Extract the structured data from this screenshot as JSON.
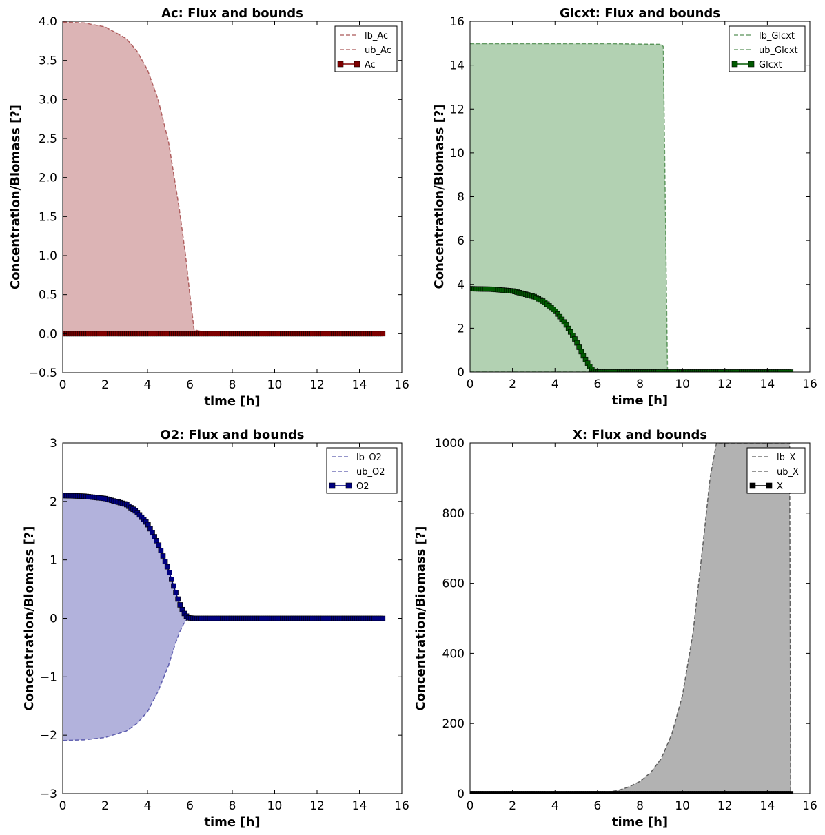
{
  "chart_data": [
    {
      "type": "line",
      "title": "Ac: Flux and bounds",
      "xlabel": "time [h]",
      "ylabel": "Concentration/Biomass [?]",
      "xlim": [
        0,
        16
      ],
      "ylim": [
        -0.5,
        4.0
      ],
      "xticks": [
        "0",
        "2",
        "4",
        "6",
        "8",
        "10",
        "12",
        "14",
        "16"
      ],
      "yticks": [
        "−0.5",
        "0.0",
        "0.5",
        "1.0",
        "1.5",
        "2.0",
        "2.5",
        "3.0",
        "3.5",
        "4.0"
      ],
      "ytick_values": [
        -0.5,
        0,
        0.5,
        1,
        1.5,
        2,
        2.5,
        3,
        3.5,
        4
      ],
      "grid": false,
      "legend_position": "top-right",
      "color": "#800000",
      "fill_color": "#dcb4b5",
      "x": [
        0,
        1,
        2,
        3,
        3.5,
        4,
        4.5,
        5,
        5.5,
        5.8,
        6.0,
        6.2,
        7,
        8,
        10,
        12,
        14,
        15.1
      ],
      "series": [
        {
          "name": "lb_Ac",
          "style": "dashed",
          "values": [
            0,
            0,
            0,
            0,
            0,
            0,
            0,
            0,
            0,
            0,
            0,
            0,
            0,
            0,
            0,
            0,
            0,
            0
          ]
        },
        {
          "name": "ub_Ac",
          "style": "dashed",
          "values": [
            3.99,
            3.98,
            3.93,
            3.78,
            3.62,
            3.38,
            3.0,
            2.45,
            1.6,
            1.0,
            0.5,
            0.05,
            0,
            0,
            0,
            0,
            0,
            0
          ]
        },
        {
          "name": "Ac",
          "style": "line-square",
          "values": [
            0,
            0,
            0,
            0,
            0,
            0,
            0,
            0,
            0,
            0,
            0,
            0,
            0,
            0,
            0,
            0,
            0,
            0
          ]
        }
      ]
    },
    {
      "type": "line",
      "title": "Glcxt: Flux and bounds",
      "xlabel": "time [h]",
      "ylabel": "Concentration/Biomass [?]",
      "xlim": [
        0,
        16
      ],
      "ylim": [
        0,
        16
      ],
      "xticks": [
        "0",
        "2",
        "4",
        "6",
        "8",
        "10",
        "12",
        "14",
        "16"
      ],
      "yticks": [
        "0",
        "2",
        "4",
        "6",
        "8",
        "10",
        "12",
        "14",
        "16"
      ],
      "ytick_values": [
        0,
        2,
        4,
        6,
        8,
        10,
        12,
        14,
        16
      ],
      "grid": false,
      "legend_position": "top-right",
      "color": "#005a00",
      "fill_color": "#b2d1b2",
      "x": [
        0,
        1,
        2,
        3,
        3.5,
        4,
        4.5,
        5,
        5.3,
        5.6,
        5.8,
        6.0,
        6.5,
        8,
        9.0,
        9.1,
        9.3,
        10,
        12,
        14,
        15.1
      ],
      "series": [
        {
          "name": "lb_Glcxt",
          "style": "dashed",
          "values": [
            0,
            0,
            0,
            0,
            0,
            0,
            0,
            0,
            0,
            0,
            0,
            0,
            0,
            0,
            0,
            0,
            0,
            0,
            0,
            0,
            0
          ]
        },
        {
          "name": "ub_Glcxt",
          "style": "dashed",
          "values": [
            14.98,
            14.98,
            14.98,
            14.98,
            14.98,
            14.98,
            14.98,
            14.98,
            14.98,
            14.98,
            14.98,
            14.98,
            14.98,
            14.96,
            14.95,
            14.85,
            0,
            0,
            0,
            0,
            0
          ]
        },
        {
          "name": "Glcxt",
          "style": "line-square",
          "values": [
            3.8,
            3.78,
            3.7,
            3.45,
            3.2,
            2.8,
            2.2,
            1.4,
            0.8,
            0.3,
            0.05,
            0,
            0,
            0,
            0,
            0,
            0,
            0,
            0,
            0,
            0
          ]
        }
      ]
    },
    {
      "type": "line",
      "title": "O2: Flux and bounds",
      "xlabel": "time [h]",
      "ylabel": "Concentration/Biomass [?]",
      "xlim": [
        0,
        16
      ],
      "ylim": [
        -3,
        3
      ],
      "xticks": [
        "0",
        "2",
        "4",
        "6",
        "8",
        "10",
        "12",
        "14",
        "16"
      ],
      "yticks": [
        "−3",
        "−2",
        "−1",
        "0",
        "1",
        "2",
        "3"
      ],
      "ytick_values": [
        -3,
        -2,
        -1,
        0,
        1,
        2,
        3
      ],
      "grid": false,
      "legend_position": "top-right",
      "color": "#000080",
      "fill_color": "#b2b2dc",
      "x": [
        0,
        1,
        2,
        3,
        3.5,
        4,
        4.5,
        5,
        5.3,
        5.5,
        5.7,
        5.9,
        6.2,
        7,
        8,
        10,
        12,
        14,
        15.1
      ],
      "series": [
        {
          "name": "lb_O2",
          "style": "dashed",
          "values": [
            -2.09,
            -2.08,
            -2.04,
            -1.93,
            -1.8,
            -1.6,
            -1.25,
            -0.8,
            -0.45,
            -0.25,
            -0.1,
            0,
            0,
            0,
            0,
            0,
            0,
            0,
            0
          ]
        },
        {
          "name": "ub_O2",
          "style": "dashed",
          "values": [
            2.09,
            2.08,
            2.04,
            1.93,
            1.8,
            1.6,
            1.25,
            0.8,
            0.45,
            0.25,
            0.1,
            0,
            0,
            0,
            0,
            0,
            0,
            0,
            0
          ]
        },
        {
          "name": "O2",
          "style": "line-square",
          "values": [
            2.1,
            2.09,
            2.05,
            1.95,
            1.82,
            1.62,
            1.28,
            0.82,
            0.48,
            0.26,
            0.1,
            0.01,
            0,
            0,
            0,
            0,
            0,
            0,
            0
          ]
        }
      ]
    },
    {
      "type": "line",
      "title": "X: Flux and bounds",
      "xlabel": "time [h]",
      "ylabel": "Concentration/Biomass [?]",
      "xlim": [
        0,
        16
      ],
      "ylim": [
        0,
        1000
      ],
      "xticks": [
        "0",
        "2",
        "4",
        "6",
        "8",
        "10",
        "12",
        "14",
        "16"
      ],
      "yticks": [
        "0",
        "200",
        "400",
        "600",
        "800",
        "1000"
      ],
      "ytick_values": [
        0,
        200,
        400,
        600,
        800,
        1000
      ],
      "grid": false,
      "legend_position": "top-right",
      "color": "#000000",
      "fill_color": "#b2b2b2",
      "x": [
        0,
        2,
        4,
        6,
        6.5,
        7,
        7.5,
        8,
        8.5,
        9,
        9.5,
        10,
        10.5,
        11,
        11.3,
        11.6,
        12,
        13,
        14,
        15.05,
        15.1
      ],
      "series": [
        {
          "name": "lb_X",
          "style": "dashed",
          "values": [
            0,
            0,
            0,
            0,
            0,
            0,
            0,
            0,
            0,
            0,
            0,
            0,
            0,
            0,
            0,
            0,
            0,
            0,
            0,
            0,
            0
          ]
        },
        {
          "name": "ub_X",
          "style": "dashed",
          "values": [
            2,
            2,
            2,
            3,
            5,
            10,
            20,
            35,
            60,
            100,
            170,
            280,
            460,
            730,
            900,
            1000,
            1000,
            1000,
            1000,
            1000,
            0
          ]
        },
        {
          "name": "X",
          "style": "line-square",
          "values": [
            0,
            0,
            0,
            0,
            0,
            0,
            0,
            0,
            0,
            0,
            0,
            0,
            0,
            0,
            0,
            0,
            0,
            0,
            0,
            0,
            0
          ]
        }
      ]
    }
  ]
}
